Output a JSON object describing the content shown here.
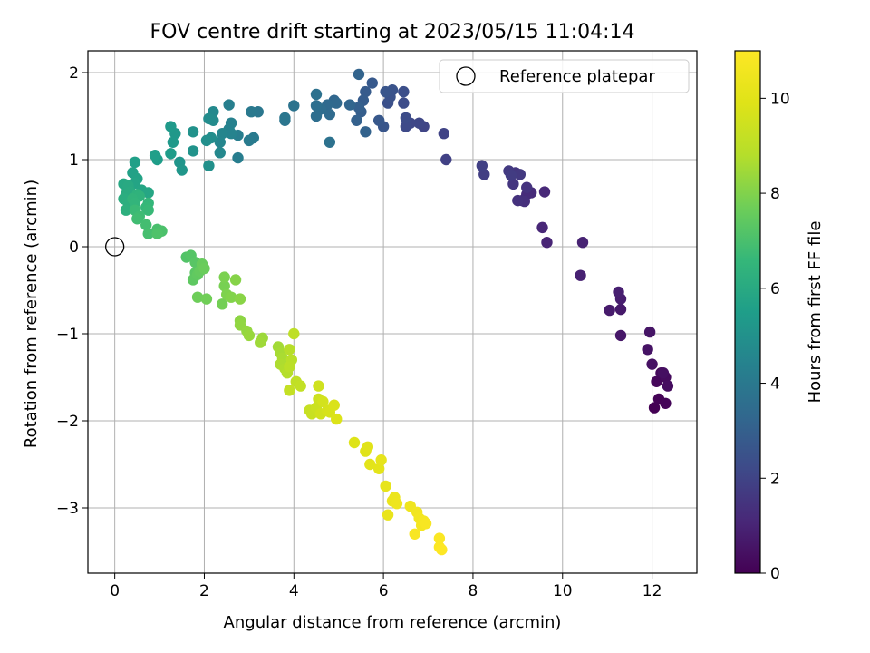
{
  "chart_data": {
    "type": "scatter",
    "title": "FOV centre drift starting at 2023/05/15 11:04:14",
    "xlabel": "Angular distance from reference (arcmin)",
    "ylabel": "Rotation from reference (arcmin)",
    "xlim": [
      -0.6,
      13
    ],
    "ylim": [
      -3.75,
      2.25
    ],
    "xticks": [
      0,
      2,
      4,
      6,
      8,
      10,
      12
    ],
    "yticks": [
      -3,
      -2,
      -1,
      0,
      1,
      2
    ],
    "grid": true,
    "legend": {
      "placement": "top-right",
      "label": "Reference platepar",
      "marker": "open-circle"
    },
    "reference_point": {
      "x": 0,
      "y": 0
    },
    "colorbar": {
      "label": "Hours from first FF file",
      "colormap": "viridis",
      "range": [
        0,
        11
      ],
      "ticks": [
        0,
        2,
        4,
        6,
        8,
        10
      ]
    },
    "series": [
      {
        "points": [
          [
            12.05,
            -1.85
          ],
          [
            12.15,
            -1.75
          ],
          [
            12.3,
            -1.8
          ],
          [
            12.1,
            -1.55
          ],
          [
            12.2,
            -1.45
          ],
          [
            12.3,
            -1.5
          ],
          [
            12.35,
            -1.6
          ],
          [
            12.25,
            -1.45
          ],
          [
            12.0,
            -1.35
          ],
          [
            11.9,
            -1.18
          ],
          [
            11.95,
            -0.98
          ],
          [
            11.3,
            -1.02
          ],
          [
            11.3,
            -0.72
          ],
          [
            11.05,
            -0.73
          ],
          [
            11.3,
            -0.6
          ],
          [
            11.25,
            -0.52
          ],
          [
            10.4,
            -0.33
          ],
          [
            10.45,
            0.05
          ],
          [
            9.65,
            0.05
          ],
          [
            9.55,
            0.22
          ],
          [
            9.6,
            0.63
          ],
          [
            9.3,
            0.62
          ],
          [
            9.2,
            0.6
          ],
          [
            9.1,
            0.53
          ],
          [
            9.15,
            0.52
          ],
          [
            9.0,
            0.53
          ],
          [
            9.2,
            0.68
          ],
          [
            8.9,
            0.72
          ],
          [
            8.95,
            0.85
          ],
          [
            9.05,
            0.83
          ],
          [
            8.8,
            0.87
          ],
          [
            8.85,
            0.82
          ],
          [
            8.25,
            0.83
          ],
          [
            8.2,
            0.93
          ],
          [
            7.4,
            1.0
          ],
          [
            7.35,
            1.3
          ],
          [
            6.9,
            1.38
          ],
          [
            6.8,
            1.42
          ],
          [
            6.6,
            1.42
          ],
          [
            6.5,
            1.38
          ],
          [
            6.5,
            1.48
          ],
          [
            6.45,
            1.65
          ],
          [
            6.45,
            1.78
          ],
          [
            6.1,
            1.65
          ],
          [
            6.15,
            1.72
          ],
          [
            6.2,
            1.8
          ],
          [
            6.05,
            1.78
          ],
          [
            6.0,
            1.38
          ],
          [
            5.9,
            1.45
          ],
          [
            5.75,
            1.88
          ],
          [
            5.6,
            1.78
          ],
          [
            5.55,
            1.68
          ],
          [
            5.5,
            1.55
          ],
          [
            5.45,
            1.6
          ],
          [
            5.4,
            1.45
          ],
          [
            5.6,
            1.32
          ],
          [
            5.45,
            1.98
          ],
          [
            5.25,
            1.63
          ],
          [
            4.9,
            1.68
          ],
          [
            4.95,
            1.65
          ],
          [
            4.75,
            1.63
          ],
          [
            4.8,
            1.52
          ],
          [
            4.6,
            1.58
          ],
          [
            4.5,
            1.5
          ],
          [
            4.5,
            1.62
          ],
          [
            4.5,
            1.75
          ],
          [
            4.8,
            1.2
          ],
          [
            4.0,
            1.62
          ],
          [
            3.8,
            1.45
          ],
          [
            3.8,
            1.48
          ],
          [
            3.2,
            1.55
          ],
          [
            3.05,
            1.55
          ],
          [
            3.1,
            1.25
          ],
          [
            3.0,
            1.22
          ],
          [
            2.75,
            1.02
          ],
          [
            2.75,
            1.28
          ],
          [
            2.55,
            1.63
          ],
          [
            2.6,
            1.42
          ],
          [
            2.55,
            1.35
          ],
          [
            2.6,
            1.3
          ],
          [
            2.4,
            1.3
          ],
          [
            2.35,
            1.2
          ],
          [
            2.35,
            1.08
          ],
          [
            2.2,
            1.55
          ],
          [
            2.2,
            1.45
          ],
          [
            2.1,
            1.47
          ],
          [
            2.15,
            1.25
          ],
          [
            2.05,
            1.22
          ],
          [
            2.1,
            0.93
          ],
          [
            1.75,
            1.32
          ],
          [
            1.75,
            1.1
          ],
          [
            1.45,
            0.97
          ],
          [
            1.5,
            0.88
          ],
          [
            1.35,
            1.3
          ],
          [
            1.3,
            1.2
          ],
          [
            1.25,
            1.38
          ],
          [
            1.25,
            1.07
          ],
          [
            0.95,
            1.0
          ],
          [
            0.9,
            1.05
          ],
          [
            0.45,
            0.97
          ],
          [
            0.4,
            0.85
          ],
          [
            0.5,
            0.78
          ],
          [
            0.45,
            0.73
          ],
          [
            0.6,
            0.65
          ],
          [
            0.75,
            0.62
          ],
          [
            0.2,
            0.72
          ],
          [
            0.3,
            0.7
          ],
          [
            0.35,
            0.63
          ],
          [
            0.25,
            0.6
          ],
          [
            0.2,
            0.55
          ],
          [
            0.3,
            0.5
          ],
          [
            0.25,
            0.42
          ],
          [
            0.5,
            0.6
          ],
          [
            0.55,
            0.58
          ],
          [
            0.4,
            0.55
          ],
          [
            0.45,
            0.5
          ],
          [
            0.75,
            0.5
          ],
          [
            0.7,
            0.45
          ],
          [
            0.75,
            0.42
          ],
          [
            0.45,
            0.42
          ],
          [
            0.55,
            0.35
          ],
          [
            0.5,
            0.32
          ],
          [
            0.7,
            0.25
          ],
          [
            0.75,
            0.15
          ],
          [
            0.95,
            0.2
          ],
          [
            1.05,
            0.18
          ],
          [
            0.95,
            0.15
          ],
          [
            1.6,
            -0.12
          ],
          [
            1.7,
            -0.1
          ],
          [
            1.8,
            -0.18
          ],
          [
            1.8,
            -0.3
          ],
          [
            1.75,
            -0.38
          ],
          [
            1.85,
            -0.32
          ],
          [
            1.9,
            -0.28
          ],
          [
            1.95,
            -0.2
          ],
          [
            2.0,
            -0.25
          ],
          [
            1.85,
            -0.58
          ],
          [
            2.05,
            -0.6
          ],
          [
            2.4,
            -0.66
          ],
          [
            2.45,
            -0.45
          ],
          [
            2.45,
            -0.35
          ],
          [
            2.5,
            -0.55
          ],
          [
            2.6,
            -0.58
          ],
          [
            2.7,
            -0.38
          ],
          [
            2.8,
            -0.6
          ],
          [
            2.8,
            -0.85
          ],
          [
            2.8,
            -0.9
          ],
          [
            2.95,
            -0.97
          ],
          [
            3.0,
            -1.02
          ],
          [
            3.3,
            -1.05
          ],
          [
            3.25,
            -1.1
          ],
          [
            3.65,
            -1.15
          ],
          [
            3.7,
            -1.22
          ],
          [
            3.75,
            -1.28
          ],
          [
            3.7,
            -1.35
          ],
          [
            3.8,
            -1.4
          ],
          [
            3.85,
            -1.45
          ],
          [
            3.9,
            -1.18
          ],
          [
            3.95,
            -1.3
          ],
          [
            3.9,
            -1.38
          ],
          [
            4.0,
            -1.0
          ],
          [
            4.05,
            -1.55
          ],
          [
            4.15,
            -1.6
          ],
          [
            3.9,
            -1.65
          ],
          [
            4.35,
            -1.88
          ],
          [
            4.4,
            -1.92
          ],
          [
            4.5,
            -1.85
          ],
          [
            4.55,
            -1.75
          ],
          [
            4.55,
            -1.6
          ],
          [
            4.6,
            -1.92
          ],
          [
            4.65,
            -1.78
          ],
          [
            4.75,
            -1.88
          ],
          [
            4.8,
            -1.9
          ],
          [
            4.9,
            -1.82
          ],
          [
            4.95,
            -1.98
          ],
          [
            5.35,
            -2.25
          ],
          [
            5.6,
            -2.35
          ],
          [
            5.65,
            -2.3
          ],
          [
            5.7,
            -2.5
          ],
          [
            5.9,
            -2.55
          ],
          [
            5.95,
            -2.45
          ],
          [
            6.05,
            -2.75
          ],
          [
            6.1,
            -3.08
          ],
          [
            6.2,
            -2.92
          ],
          [
            6.25,
            -2.88
          ],
          [
            6.3,
            -2.95
          ],
          [
            6.6,
            -2.98
          ],
          [
            6.75,
            -3.05
          ],
          [
            6.8,
            -3.12
          ],
          [
            6.85,
            -3.2
          ],
          [
            6.9,
            -3.15
          ],
          [
            6.95,
            -3.18
          ],
          [
            6.7,
            -3.3
          ],
          [
            7.25,
            -3.35
          ],
          [
            7.25,
            -3.45
          ],
          [
            7.3,
            -3.48
          ]
        ]
      }
    ]
  }
}
